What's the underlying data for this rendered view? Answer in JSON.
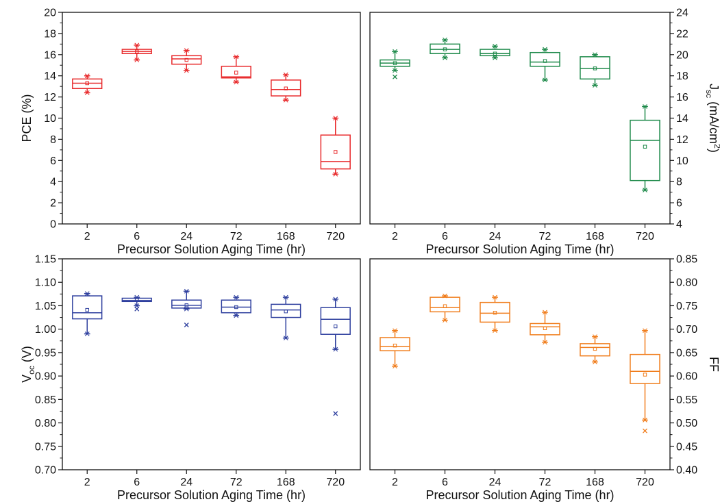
{
  "chart_data": [
    {
      "type": "box",
      "color": "#e8292b",
      "categories": [
        "2",
        "6",
        "24",
        "72",
        "168",
        "720"
      ],
      "xlabel": "Precursor Solution Aging Time (hr)",
      "ylabel": "PCE (%)",
      "ylim": [
        0,
        20
      ],
      "yticks": [
        "0",
        "2",
        "4",
        "6",
        "8",
        "10",
        "12",
        "14",
        "16",
        "18",
        "20"
      ],
      "y_axis_side": "left",
      "boxes": [
        {
          "whisker_low": 12.4,
          "q1": 12.8,
          "median": 13.3,
          "q3": 13.7,
          "whisker_high": 14.0,
          "mean": 13.3,
          "outliers": []
        },
        {
          "whisker_low": 15.5,
          "q1": 16.1,
          "median": 16.3,
          "q3": 16.5,
          "whisker_high": 16.9,
          "mean": 16.3,
          "outliers": []
        },
        {
          "whisker_low": 14.5,
          "q1": 15.1,
          "median": 15.6,
          "q3": 15.9,
          "whisker_high": 16.4,
          "mean": 15.5,
          "outliers": []
        },
        {
          "whisker_low": 13.4,
          "q1": 13.8,
          "median": 13.9,
          "q3": 14.9,
          "whisker_high": 15.8,
          "mean": 14.3,
          "outliers": []
        },
        {
          "whisker_low": 11.7,
          "q1": 12.1,
          "median": 12.7,
          "q3": 13.6,
          "whisker_high": 14.1,
          "mean": 12.8,
          "outliers": []
        },
        {
          "whisker_low": 4.7,
          "q1": 5.2,
          "median": 5.9,
          "q3": 8.4,
          "whisker_high": 10.0,
          "mean": 6.8,
          "outliers": []
        }
      ]
    },
    {
      "type": "box",
      "color": "#1e8a4a",
      "categories": [
        "2",
        "6",
        "24",
        "72",
        "168",
        "720"
      ],
      "xlabel": "Precursor Solution Aging Time (hr)",
      "ylabel": "J",
      "ylabel_sub": "sc",
      "ylabel_unit": "(mA/cm",
      "ylabel_sup": "2",
      "ylabel_close": ")",
      "ylim": [
        4,
        24
      ],
      "yticks": [
        "4",
        "6",
        "8",
        "10",
        "12",
        "14",
        "16",
        "18",
        "20",
        "22",
        "24"
      ],
      "y_axis_side": "right",
      "boxes": [
        {
          "whisker_low": 18.5,
          "q1": 18.9,
          "median": 19.2,
          "q3": 19.5,
          "whisker_high": 20.3,
          "mean": 19.2,
          "outliers": [
            17.9
          ]
        },
        {
          "whisker_low": 19.7,
          "q1": 20.1,
          "median": 20.5,
          "q3": 21.0,
          "whisker_high": 21.4,
          "mean": 20.5,
          "outliers": []
        },
        {
          "whisker_low": 19.7,
          "q1": 19.9,
          "median": 20.1,
          "q3": 20.5,
          "whisker_high": 20.8,
          "mean": 20.1,
          "outliers": []
        },
        {
          "whisker_low": 17.6,
          "q1": 18.9,
          "median": 19.3,
          "q3": 20.2,
          "whisker_high": 20.5,
          "mean": 19.4,
          "outliers": []
        },
        {
          "whisker_low": 17.1,
          "q1": 17.7,
          "median": 18.7,
          "q3": 19.8,
          "whisker_high": 20.0,
          "mean": 18.7,
          "outliers": []
        },
        {
          "whisker_low": 7.2,
          "q1": 8.1,
          "median": 11.9,
          "q3": 13.8,
          "whisker_high": 15.1,
          "mean": 11.3,
          "outliers": []
        }
      ]
    },
    {
      "type": "box",
      "color": "#2e3f9e",
      "categories": [
        "2",
        "6",
        "24",
        "72",
        "168",
        "720"
      ],
      "xlabel": "Precursor Solution Aging Time (hr)",
      "ylabel": "V",
      "ylabel_sub": "oc",
      "ylabel_unit": " (V)",
      "ylim": [
        0.7,
        1.15
      ],
      "yticks": [
        "0.70",
        "0.75",
        "0.80",
        "0.85",
        "0.90",
        "0.95",
        "1.00",
        "1.05",
        "1.10",
        "1.15"
      ],
      "y_axis_side": "left",
      "boxes": [
        {
          "whisker_low": 0.99,
          "q1": 1.022,
          "median": 1.035,
          "q3": 1.071,
          "whisker_high": 1.076,
          "mean": 1.041,
          "outliers": []
        },
        {
          "whisker_low": 1.05,
          "q1": 1.059,
          "median": 1.061,
          "q3": 1.066,
          "whisker_high": 1.068,
          "mean": 1.062,
          "outliers": [
            1.043
          ]
        },
        {
          "whisker_low": 1.043,
          "q1": 1.045,
          "median": 1.051,
          "q3": 1.062,
          "whisker_high": 1.081,
          "mean": 1.051,
          "outliers": [
            1.009
          ]
        },
        {
          "whisker_low": 1.029,
          "q1": 1.035,
          "median": 1.047,
          "q3": 1.062,
          "whisker_high": 1.068,
          "mean": 1.047,
          "outliers": []
        },
        {
          "whisker_low": 0.981,
          "q1": 1.025,
          "median": 1.041,
          "q3": 1.053,
          "whisker_high": 1.068,
          "mean": 1.038,
          "outliers": []
        },
        {
          "whisker_low": 0.957,
          "q1": 0.989,
          "median": 1.021,
          "q3": 1.046,
          "whisker_high": 1.064,
          "mean": 1.006,
          "outliers": [
            0.82
          ]
        }
      ]
    },
    {
      "type": "box",
      "color": "#f07d1c",
      "categories": [
        "2",
        "6",
        "24",
        "72",
        "168",
        "720"
      ],
      "xlabel": "Precursor Solution Aging Time (hr)",
      "ylabel": "FF",
      "ylim": [
        0.4,
        0.85
      ],
      "yticks": [
        "0.40",
        "0.45",
        "0.50",
        "0.55",
        "0.60",
        "0.65",
        "0.70",
        "0.75",
        "0.80",
        "0.85"
      ],
      "y_axis_side": "right",
      "boxes": [
        {
          "whisker_low": 0.621,
          "q1": 0.654,
          "median": 0.663,
          "q3": 0.682,
          "whisker_high": 0.697,
          "mean": 0.665,
          "outliers": []
        },
        {
          "whisker_low": 0.719,
          "q1": 0.737,
          "median": 0.746,
          "q3": 0.768,
          "whisker_high": 0.771,
          "mean": 0.749,
          "outliers": []
        },
        {
          "whisker_low": 0.697,
          "q1": 0.715,
          "median": 0.734,
          "q3": 0.757,
          "whisker_high": 0.768,
          "mean": 0.735,
          "outliers": []
        },
        {
          "whisker_low": 0.672,
          "q1": 0.688,
          "median": 0.705,
          "q3": 0.712,
          "whisker_high": 0.736,
          "mean": 0.702,
          "outliers": []
        },
        {
          "whisker_low": 0.63,
          "q1": 0.643,
          "median": 0.661,
          "q3": 0.669,
          "whisker_high": 0.684,
          "mean": 0.658,
          "outliers": []
        },
        {
          "whisker_low": 0.506,
          "q1": 0.584,
          "median": 0.61,
          "q3": 0.646,
          "whisker_high": 0.697,
          "mean": 0.603,
          "outliers": [
            0.483
          ]
        }
      ]
    }
  ]
}
